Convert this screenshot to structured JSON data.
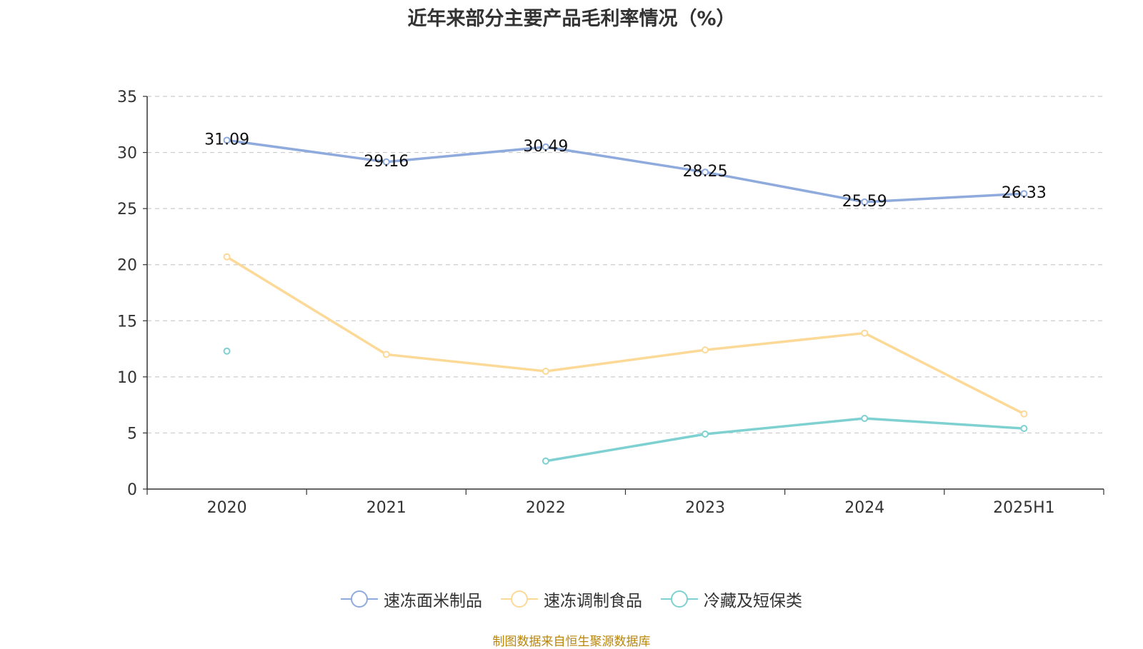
{
  "title": "近年来部分主要产品毛利率情况（%）",
  "source": "制图数据来自恒生聚源数据库",
  "chart_data": {
    "type": "line",
    "categories": [
      "2020",
      "2021",
      "2022",
      "2023",
      "2024",
      "2025H1"
    ],
    "ylim": [
      0,
      35
    ],
    "yticks": [
      0,
      5,
      10,
      15,
      20,
      25,
      30,
      35
    ],
    "grid": true,
    "legend_position": "bottom-center",
    "series": [
      {
        "name": "速冻面米制品",
        "color": "#8faadc",
        "values": [
          31.09,
          29.16,
          30.49,
          28.25,
          25.59,
          26.33
        ],
        "show_labels": true
      },
      {
        "name": "速冻调制食品",
        "color": "#fcd997",
        "values": [
          20.7,
          12.0,
          10.5,
          12.4,
          13.9,
          6.7
        ],
        "show_labels": false
      },
      {
        "name": "冷藏及短保类",
        "color": "#7fd1d1",
        "values": [
          12.3,
          null,
          2.5,
          4.9,
          6.3,
          5.4
        ],
        "show_labels": false
      }
    ]
  }
}
